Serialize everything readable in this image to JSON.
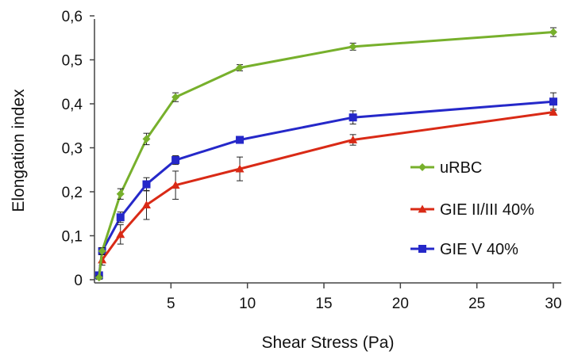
{
  "chart_data": {
    "type": "line",
    "title": "",
    "xlabel": "Shear Stress (Pa)",
    "ylabel": "Elongation index",
    "xlim": [
      0,
      30
    ],
    "ylim": [
      0,
      0.6
    ],
    "x_ticks": [
      5,
      10,
      15,
      20,
      25,
      30
    ],
    "x_tick_labels": [
      "5",
      "10",
      "15",
      "20",
      "25",
      "30"
    ],
    "y_ticks": [
      0,
      0.1,
      0.2,
      0.3,
      0.4,
      0.5,
      0.6
    ],
    "y_tick_labels": [
      "0",
      "0,1",
      "0,2",
      "0,3",
      "0,4",
      "0,5",
      "0,6"
    ],
    "grid": false,
    "legend_position": "right",
    "series": [
      {
        "name": "uRBC",
        "color": "#77b02c",
        "marker": "diamond",
        "x": [
          0.3,
          0.5,
          1.7,
          3.4,
          5.3,
          9.5,
          16.9,
          30
        ],
        "y": [
          0.005,
          0.065,
          0.195,
          0.32,
          0.415,
          0.482,
          0.53,
          0.563
        ],
        "err": [
          0.004,
          0.008,
          0.012,
          0.013,
          0.01,
          0.007,
          0.008,
          0.01
        ]
      },
      {
        "name": "GIE II/III 40%",
        "color": "#d92a16",
        "marker": "triangle",
        "x": [
          0.5,
          1.7,
          3.4,
          5.3,
          9.5,
          16.9,
          30
        ],
        "y": [
          0.045,
          0.103,
          0.17,
          0.215,
          0.252,
          0.318,
          0.381
        ],
        "err": [
          0.012,
          0.022,
          0.033,
          0.032,
          0.027,
          0.012,
          0.007
        ]
      },
      {
        "name": "GIE V 40%",
        "color": "#2528c9",
        "marker": "square",
        "x": [
          0.3,
          0.5,
          1.7,
          3.4,
          5.3,
          9.5,
          16.9,
          30
        ],
        "y": [
          0.01,
          0.065,
          0.142,
          0.217,
          0.272,
          0.318,
          0.369,
          0.405
        ],
        "err": [
          0.004,
          0.008,
          0.012,
          0.015,
          0.01,
          0.008,
          0.015,
          0.02
        ]
      }
    ]
  }
}
